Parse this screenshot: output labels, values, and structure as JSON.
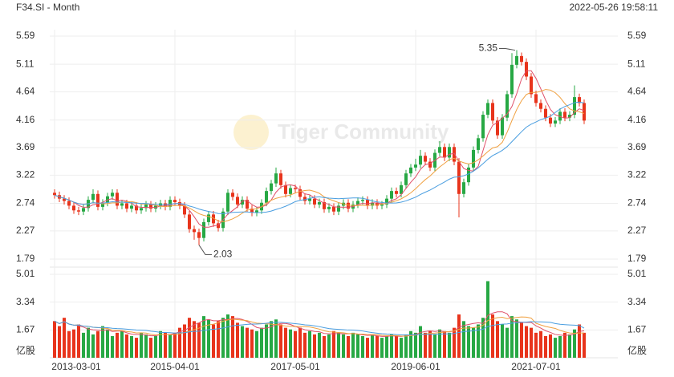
{
  "header": {
    "symbol": "F34.SI - Month",
    "timestamp": "2022-05-26 19:58:11",
    "watermark": "Tiger Community"
  },
  "chart_data": {
    "type": "candlestick",
    "x": [
      "2013-03-01",
      "2013-04-01",
      "2013-05-01",
      "2013-06-01",
      "2013-07-01",
      "2013-08-01",
      "2013-09-01",
      "2013-10-01",
      "2013-11-01",
      "2013-12-01",
      "2014-01-01",
      "2014-02-01",
      "2014-03-01",
      "2014-04-01",
      "2014-05-01",
      "2014-06-01",
      "2014-07-01",
      "2014-08-01",
      "2014-09-01",
      "2014-10-01",
      "2014-11-01",
      "2014-12-01",
      "2015-01-01",
      "2015-02-01",
      "2015-03-01",
      "2015-04-01",
      "2015-05-01",
      "2015-06-01",
      "2015-07-01",
      "2015-08-01",
      "2015-09-01",
      "2015-10-01",
      "2015-11-01",
      "2015-12-01",
      "2016-01-01",
      "2016-02-01",
      "2016-03-01",
      "2016-04-01",
      "2016-05-01",
      "2016-06-01",
      "2016-07-01",
      "2016-08-01",
      "2016-09-01",
      "2016-10-01",
      "2016-11-01",
      "2016-12-01",
      "2017-01-01",
      "2017-02-01",
      "2017-03-01",
      "2017-04-01",
      "2017-05-01",
      "2017-06-01",
      "2017-07-01",
      "2017-08-01",
      "2017-09-01",
      "2017-10-01",
      "2017-11-01",
      "2017-12-01",
      "2018-01-01",
      "2018-02-01",
      "2018-03-01",
      "2018-04-01",
      "2018-05-01",
      "2018-06-01",
      "2018-07-01",
      "2018-08-01",
      "2018-09-01",
      "2018-10-01",
      "2018-11-01",
      "2018-12-01",
      "2019-01-01",
      "2019-02-01",
      "2019-03-01",
      "2019-04-01",
      "2019-05-01",
      "2019-06-01",
      "2019-07-01",
      "2019-08-01",
      "2019-09-01",
      "2019-10-01",
      "2019-11-01",
      "2019-12-01",
      "2020-01-01",
      "2020-02-01",
      "2020-03-01",
      "2020-04-01",
      "2020-05-01",
      "2020-06-01",
      "2020-07-01",
      "2020-08-01",
      "2020-09-01",
      "2020-10-01",
      "2020-11-01",
      "2020-12-01",
      "2021-01-01",
      "2021-02-01",
      "2021-03-01",
      "2021-04-01",
      "2021-05-01",
      "2021-06-01",
      "2021-07-01",
      "2021-08-01",
      "2021-09-01",
      "2021-10-01",
      "2021-11-01",
      "2021-12-01",
      "2022-01-01",
      "2022-02-01",
      "2022-03-01",
      "2022-04-01",
      "2022-05-01"
    ],
    "open": [
      2.92,
      2.88,
      2.82,
      2.78,
      2.7,
      2.62,
      2.6,
      2.66,
      2.8,
      2.9,
      2.68,
      2.75,
      2.86,
      2.92,
      2.7,
      2.74,
      2.65,
      2.7,
      2.62,
      2.66,
      2.72,
      2.65,
      2.7,
      2.74,
      2.68,
      2.8,
      2.76,
      2.7,
      2.55,
      2.3,
      2.25,
      2.15,
      2.42,
      2.55,
      2.4,
      2.32,
      2.6,
      2.92,
      2.85,
      2.72,
      2.8,
      2.65,
      2.58,
      2.62,
      2.75,
      2.95,
      3.08,
      3.25,
      3.05,
      2.9,
      3.0,
      2.98,
      2.85,
      2.78,
      2.82,
      2.72,
      2.76,
      2.64,
      2.68,
      2.6,
      2.7,
      2.75,
      2.65,
      2.72,
      2.78,
      2.8,
      2.7,
      2.75,
      2.7,
      2.72,
      2.82,
      2.95,
      2.9,
      3.05,
      3.25,
      3.35,
      3.4,
      3.55,
      3.45,
      3.35,
      3.6,
      3.7,
      3.52,
      3.7,
      3.45,
      2.9,
      3.1,
      3.35,
      3.65,
      3.85,
      4.25,
      4.45,
      4.15,
      3.9,
      4.2,
      4.6,
      5.1,
      5.25,
      5.15,
      4.9,
      4.6,
      4.45,
      4.35,
      4.2,
      4.1,
      4.15,
      4.3,
      4.2,
      4.25,
      4.55,
      4.45
    ],
    "high": [
      2.98,
      2.94,
      2.88,
      2.84,
      2.76,
      2.68,
      2.72,
      2.86,
      2.98,
      2.96,
      2.81,
      2.92,
      2.98,
      2.98,
      2.8,
      2.8,
      2.76,
      2.76,
      2.72,
      2.78,
      2.78,
      2.76,
      2.8,
      2.8,
      2.86,
      2.86,
      2.82,
      2.76,
      2.61,
      2.36,
      2.31,
      2.48,
      2.61,
      2.61,
      2.46,
      2.66,
      2.98,
      2.98,
      2.91,
      2.86,
      2.86,
      2.71,
      2.68,
      2.81,
      3.01,
      3.14,
      3.35,
      3.31,
      3.11,
      3.06,
      3.06,
      3.04,
      2.91,
      2.88,
      2.88,
      2.82,
      2.82,
      2.74,
      2.74,
      2.76,
      2.81,
      2.81,
      2.78,
      2.84,
      2.86,
      2.86,
      2.81,
      2.81,
      2.78,
      2.88,
      3.01,
      3.01,
      3.11,
      3.31,
      3.41,
      3.5,
      3.65,
      3.61,
      3.51,
      3.66,
      3.8,
      3.76,
      3.76,
      3.76,
      3.51,
      3.16,
      3.41,
      3.71,
      3.91,
      4.31,
      4.51,
      4.51,
      4.21,
      4.26,
      4.66,
      5.3,
      5.35,
      5.31,
      5.21,
      4.96,
      4.66,
      4.51,
      4.41,
      4.26,
      4.21,
      4.36,
      4.36,
      4.31,
      4.75,
      4.61,
      4.51
    ],
    "low": [
      2.82,
      2.76,
      2.72,
      2.64,
      2.56,
      2.54,
      2.54,
      2.6,
      2.74,
      2.62,
      2.62,
      2.69,
      2.8,
      2.64,
      2.64,
      2.59,
      2.59,
      2.56,
      2.56,
      2.6,
      2.59,
      2.59,
      2.64,
      2.62,
      2.62,
      2.7,
      2.64,
      2.49,
      2.24,
      2.12,
      2.03,
      2.09,
      2.36,
      2.34,
      2.26,
      2.26,
      2.54,
      2.79,
      2.66,
      2.66,
      2.59,
      2.52,
      2.52,
      2.56,
      2.69,
      2.89,
      3.02,
      2.99,
      2.84,
      2.84,
      2.92,
      2.79,
      2.72,
      2.72,
      2.66,
      2.66,
      2.58,
      2.58,
      2.54,
      2.54,
      2.64,
      2.59,
      2.59,
      2.66,
      2.72,
      2.64,
      2.64,
      2.64,
      2.64,
      2.66,
      2.76,
      2.84,
      2.84,
      2.99,
      3.19,
      3.29,
      3.34,
      3.39,
      3.29,
      3.29,
      3.54,
      3.46,
      3.46,
      3.39,
      2.5,
      2.84,
      3.04,
      3.29,
      3.59,
      3.79,
      4.19,
      4.09,
      3.84,
      3.84,
      4.14,
      4.54,
      5.04,
      5.09,
      4.84,
      4.54,
      4.39,
      4.29,
      4.14,
      4.04,
      4.04,
      4.09,
      4.14,
      4.14,
      4.19,
      4.39,
      4.09
    ],
    "close": [
      2.88,
      2.82,
      2.78,
      2.7,
      2.62,
      2.6,
      2.66,
      2.8,
      2.9,
      2.68,
      2.75,
      2.86,
      2.92,
      2.7,
      2.74,
      2.65,
      2.7,
      2.62,
      2.66,
      2.72,
      2.65,
      2.7,
      2.74,
      2.68,
      2.8,
      2.76,
      2.7,
      2.55,
      2.3,
      2.25,
      2.15,
      2.42,
      2.55,
      2.4,
      2.32,
      2.6,
      2.92,
      2.85,
      2.72,
      2.8,
      2.65,
      2.58,
      2.62,
      2.75,
      2.95,
      3.08,
      3.25,
      3.05,
      2.9,
      3.0,
      2.98,
      2.85,
      2.78,
      2.82,
      2.72,
      2.76,
      2.64,
      2.68,
      2.6,
      2.7,
      2.75,
      2.65,
      2.72,
      2.78,
      2.8,
      2.7,
      2.75,
      2.7,
      2.72,
      2.82,
      2.95,
      2.9,
      3.05,
      3.25,
      3.35,
      3.4,
      3.55,
      3.45,
      3.35,
      3.6,
      3.7,
      3.52,
      3.7,
      3.45,
      2.9,
      3.1,
      3.35,
      3.65,
      3.85,
      4.25,
      4.45,
      4.15,
      3.9,
      4.2,
      4.6,
      5.1,
      5.25,
      5.15,
      4.9,
      4.6,
      4.45,
      4.35,
      4.2,
      4.1,
      4.15,
      4.3,
      4.2,
      4.25,
      4.55,
      4.45,
      4.15
    ],
    "volume": [
      2.2,
      1.9,
      2.4,
      1.6,
      1.7,
      2.0,
      1.5,
      1.8,
      1.4,
      1.6,
      1.9,
      1.7,
      1.3,
      1.5,
      1.6,
      1.4,
      1.3,
      1.2,
      1.5,
      1.4,
      1.2,
      1.3,
      1.6,
      1.5,
      1.4,
      1.5,
      1.8,
      2.0,
      2.4,
      2.2,
      2.1,
      2.5,
      2.3,
      2.0,
      2.2,
      2.4,
      2.6,
      2.5,
      2.1,
      1.9,
      1.8,
      1.7,
      1.6,
      1.8,
      2.0,
      2.2,
      2.3,
      2.0,
      1.8,
      1.7,
      1.6,
      1.8,
      1.5,
      1.6,
      1.4,
      1.5,
      1.3,
      1.4,
      1.6,
      1.5,
      1.4,
      1.3,
      1.5,
      1.4,
      1.3,
      1.2,
      1.4,
      1.3,
      1.2,
      1.3,
      1.4,
      1.3,
      1.2,
      1.4,
      1.6,
      1.5,
      1.9,
      1.5,
      1.6,
      1.4,
      1.7,
      1.6,
      1.5,
      1.8,
      2.6,
      2.2,
      1.9,
      1.8,
      2.0,
      2.4,
      4.6,
      2.6,
      2.2,
      2.0,
      1.8,
      2.5,
      2.3,
      2.1,
      1.9,
      1.8,
      1.5,
      1.6,
      1.3,
      1.4,
      1.2,
      1.3,
      1.5,
      1.4,
      1.7,
      2.0,
      1.5
    ],
    "up_color": "#27a844",
    "down_color": "#e8341c",
    "ylim": [
      1.79,
      5.59
    ],
    "yticks": [
      1.79,
      2.27,
      2.74,
      3.22,
      3.69,
      4.16,
      4.64,
      5.11,
      5.59
    ],
    "volume_ylim": [
      0,
      5.01
    ],
    "volume_yticks": [
      1.67,
      3.34,
      5.01
    ],
    "volume_unit": "亿股",
    "xticks": [
      "2013-03-01",
      "2015-04-01",
      "2017-05-01",
      "2019-06-01",
      "2021-07-01"
    ],
    "grid": true
  }
}
